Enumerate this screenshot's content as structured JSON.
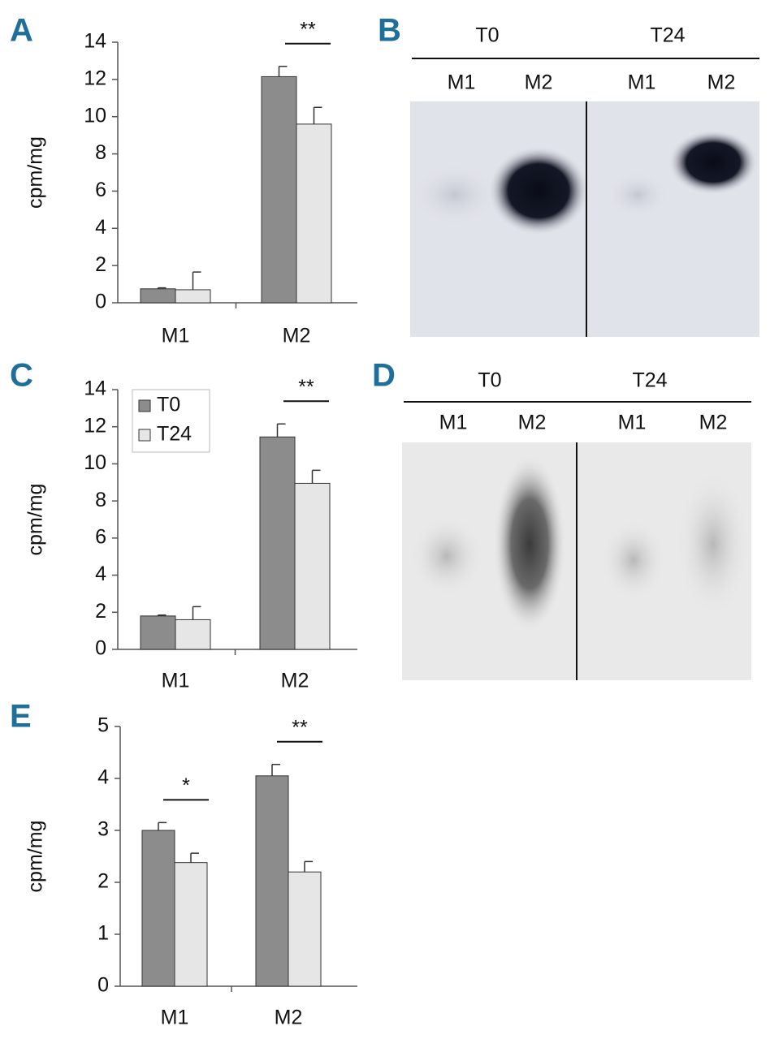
{
  "chart_data": [
    {
      "type": "bar",
      "label": "A",
      "y_label": "cpm/mg",
      "categories": [
        "M1",
        "M2"
      ],
      "series": [
        {
          "name": "T0",
          "color": "#8c8c8c",
          "values": [
            0.75,
            12.15
          ],
          "errors": [
            0.05,
            0.55
          ]
        },
        {
          "name": "T24",
          "color": "#e6e6e6",
          "values": [
            0.7,
            9.6
          ],
          "errors": [
            0.95,
            0.9
          ]
        }
      ],
      "significance": [
        null,
        "**"
      ],
      "ylim": [
        0,
        14
      ],
      "yticks": [
        0,
        2,
        4,
        6,
        8,
        10,
        12,
        14
      ],
      "legend": "none"
    },
    {
      "type": "bar",
      "label": "C",
      "y_label": "cpm/mg",
      "categories": [
        "M1",
        "M2"
      ],
      "series": [
        {
          "name": "T0",
          "color": "#8c8c8c",
          "values": [
            1.8,
            11.45
          ],
          "errors": [
            0.05,
            0.7
          ]
        },
        {
          "name": "T24",
          "color": "#e6e6e6",
          "values": [
            1.6,
            8.95
          ],
          "errors": [
            0.7,
            0.7
          ]
        }
      ],
      "significance": [
        null,
        "**"
      ],
      "ylim": [
        0,
        14
      ],
      "yticks": [
        0,
        2,
        4,
        6,
        8,
        10,
        12,
        14
      ],
      "legend": "upper left"
    },
    {
      "type": "bar",
      "label": "E",
      "y_label": "cpm/mg",
      "categories": [
        "M1",
        "M2"
      ],
      "series": [
        {
          "name": "T0",
          "color": "#8c8c8c",
          "values": [
            3.0,
            4.05
          ],
          "errors": [
            0.15,
            0.22
          ]
        },
        {
          "name": "T24",
          "color": "#e6e6e6",
          "values": [
            2.38,
            2.2
          ],
          "errors": [
            0.18,
            0.2
          ]
        }
      ],
      "significance": [
        "*",
        "**"
      ],
      "ylim": [
        0,
        5
      ],
      "yticks": [
        0,
        1,
        2,
        3,
        4,
        5
      ],
      "legend": "none"
    }
  ],
  "blots": [
    {
      "label": "B",
      "groups": [
        "T0",
        "T24"
      ],
      "lanes": [
        "M1",
        "M2",
        "M1",
        "M2"
      ]
    },
    {
      "label": "D",
      "groups": [
        "T0",
        "T24"
      ],
      "lanes": [
        "M1",
        "M2",
        "M1",
        "M2"
      ]
    }
  ]
}
